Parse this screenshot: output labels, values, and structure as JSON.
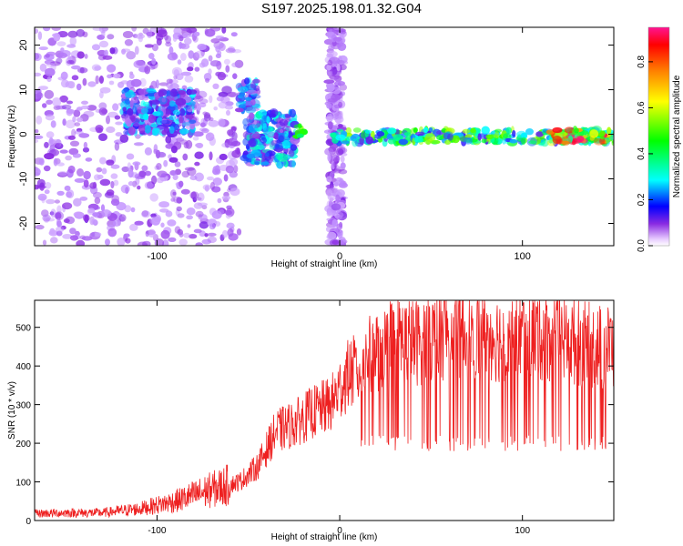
{
  "title": "S197.2025.198.01.32.G04",
  "chart_data": [
    {
      "type": "heatmap",
      "xlabel": "Height of straight line (km)",
      "ylabel": "Frequency (Hz)",
      "xlim": [
        -167,
        150
      ],
      "ylim": [
        -25,
        24
      ],
      "x_ticks": [
        -100,
        0,
        100
      ],
      "y_ticks": [
        -20,
        -10,
        0,
        10,
        20
      ],
      "colorbar": {
        "label": "Normalized spectral amplitude",
        "range": [
          0,
          0.95
        ],
        "ticks": [
          0.0,
          0.2,
          0.4,
          0.6,
          0.8
        ],
        "palette": [
          "#ffffff",
          "#d9b3ff",
          "#8a2be2",
          "#0000ff",
          "#00ffff",
          "#00ff00",
          "#ffff00",
          "#ff8000",
          "#ff0000",
          "#ff1493"
        ]
      },
      "bands": [
        {
          "x": [
            -167,
            -55
          ],
          "y": [
            -25,
            24
          ],
          "amp": 0.12,
          "note": "scattered noise"
        },
        {
          "x": [
            -118,
            -80
          ],
          "y": [
            0,
            10
          ],
          "amp": 0.25
        },
        {
          "x": [
            -55,
            -45
          ],
          "y": [
            5,
            12
          ],
          "amp": 0.25
        },
        {
          "x": [
            -52,
            -24
          ],
          "y": [
            -7,
            5
          ],
          "amp": 0.28
        },
        {
          "x": [
            -24,
            -19
          ],
          "y": [
            -1,
            2
          ],
          "amp": 0.45
        },
        {
          "x": [
            -6,
            2
          ],
          "y": [
            -25,
            24
          ],
          "amp": 0.12
        },
        {
          "x": [
            -4,
            150
          ],
          "y": [
            -2,
            1
          ],
          "amp": 0.45
        },
        {
          "x": [
            115,
            148
          ],
          "y": [
            -2,
            1
          ],
          "amp": 0.85
        }
      ]
    },
    {
      "type": "line",
      "xlabel": "Height of straight line (km)",
      "ylabel": "SNR (10 * v/v)",
      "xlim": [
        -167,
        150
      ],
      "ylim": [
        0,
        570
      ],
      "x_ticks": [
        -100,
        0,
        100
      ],
      "y_ticks": [
        0,
        100,
        200,
        300,
        400,
        500
      ],
      "series": [
        {
          "color": "#ee2020",
          "x": [
            -167,
            -150,
            -130,
            -110,
            -90,
            -70,
            -55,
            -45,
            -35,
            -25,
            -15,
            -5,
            0,
            5,
            10,
            15,
            20,
            25,
            30,
            40,
            50,
            60,
            70,
            80,
            90,
            100,
            110,
            120,
            130,
            140,
            150
          ],
          "values": [
            18,
            20,
            20,
            30,
            50,
            80,
            100,
            140,
            230,
            250,
            280,
            300,
            340,
            380,
            390,
            420,
            440,
            450,
            470,
            460,
            470,
            490,
            480,
            480,
            470,
            480,
            480,
            470,
            460,
            450,
            450
          ]
        }
      ],
      "dropouts_to": 200
    }
  ]
}
